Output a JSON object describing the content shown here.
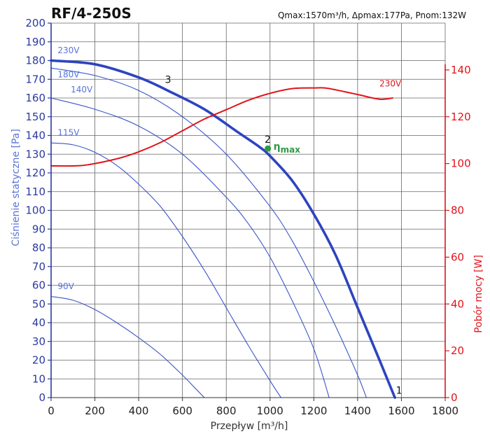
{
  "chart_data": {
    "type": "line",
    "title": "RF/4-250S",
    "subtitle": "Qmax:1570m³/h, Δpmax:177Pa, Pnom:132W",
    "xlabel": "Przepływ [m³/h]",
    "ylabel": "Ciśnienie statyczne [Pa]",
    "y2label": "Pobór mocy [W]",
    "xlim": [
      0,
      1800
    ],
    "ylim": [
      0,
      200
    ],
    "y2lim": [
      0,
      160
    ],
    "grid": true,
    "x_ticks": [
      "0",
      "200",
      "400",
      "600",
      "800",
      "1000",
      "1200",
      "1400",
      "1600",
      "1800"
    ],
    "y_ticks": [
      "0",
      "10",
      "20",
      "30",
      "40",
      "50",
      "60",
      "70",
      "80",
      "90",
      "100",
      "110",
      "120",
      "130",
      "140",
      "150",
      "160",
      "170",
      "180",
      "190",
      "200"
    ],
    "y2_ticks": [
      "0",
      "20",
      "40",
      "60",
      "80",
      "100",
      "120",
      "140"
    ],
    "series": [
      {
        "name": "230V",
        "axis": "left",
        "emphasis": true,
        "x": [
          0,
          200,
          400,
          550,
          700,
          850,
          950,
          1000,
          1100,
          1200,
          1300,
          1400,
          1500,
          1570
        ],
        "y": [
          180,
          178,
          171,
          163,
          154,
          142,
          134,
          129,
          116,
          98,
          76,
          48,
          20,
          0
        ]
      },
      {
        "name": "180V",
        "axis": "left",
        "emphasis": false,
        "x": [
          0,
          200,
          400,
          600,
          800,
          1000,
          1100,
          1200,
          1300,
          1400,
          1440
        ],
        "y": [
          176,
          172,
          164,
          150,
          130,
          102,
          84,
          62,
          38,
          12,
          0
        ]
      },
      {
        "name": "140V",
        "axis": "left",
        "emphasis": false,
        "x": [
          0,
          200,
          400,
          600,
          800,
          900,
          1000,
          1100,
          1200,
          1270
        ],
        "y": [
          160,
          154,
          145,
          130,
          107,
          93,
          75,
          52,
          26,
          0
        ]
      },
      {
        "name": "115V",
        "axis": "left",
        "emphasis": false,
        "x": [
          0,
          100,
          200,
          300,
          400,
          500,
          600,
          700,
          800,
          900,
          1000,
          1050
        ],
        "y": [
          136,
          135,
          131,
          124,
          114,
          102,
          86,
          68,
          48,
          28,
          9,
          0
        ]
      },
      {
        "name": "90V",
        "axis": "left",
        "emphasis": false,
        "x": [
          0,
          100,
          200,
          300,
          400,
          500,
          600,
          650,
          700
        ],
        "y": [
          54,
          52,
          47,
          40,
          32,
          23,
          12,
          6,
          0
        ]
      },
      {
        "name": "230V",
        "axis": "right",
        "kind": "power",
        "x": [
          0,
          100,
          170,
          300,
          400,
          500,
          600,
          700,
          800,
          900,
          1000,
          1100,
          1200,
          1250,
          1300,
          1400,
          1500,
          1560
        ],
        "y": [
          99,
          99,
          99.5,
          102,
          105,
          109,
          114,
          119,
          123,
          127,
          130,
          132,
          132.3,
          132.3,
          131.5,
          129.5,
          127.5,
          128
        ]
      }
    ],
    "voltage_labels": [
      {
        "text": "230V",
        "x": 30,
        "y": 184
      },
      {
        "text": "180V",
        "x": 30,
        "y": 171
      },
      {
        "text": "140V",
        "x": 90,
        "y": 163
      },
      {
        "text": "115V",
        "x": 30,
        "y": 140
      },
      {
        "text": "90V",
        "x": 30,
        "y": 58
      }
    ],
    "power_label": {
      "text": "230V",
      "x": 1500,
      "y": 133
    },
    "operating_points": [
      {
        "text": "1",
        "x": 1575,
        "y": 2
      },
      {
        "text": "2",
        "x": 975,
        "y": 136
      },
      {
        "text": "3",
        "x": 520,
        "y": 168
      }
    ],
    "eta_max": {
      "text": "η",
      "sub": "max",
      "x": 990,
      "y": 133,
      "color": "#2e9b46"
    },
    "colors": {
      "bold_curve": "#2d44c0",
      "thin_curve": "#3a55c8",
      "power": "#e0141b",
      "grid": "#666666",
      "left_axis": "#2b3a9f",
      "right_axis": "#e0141b",
      "eta": "#2e9b46"
    }
  }
}
